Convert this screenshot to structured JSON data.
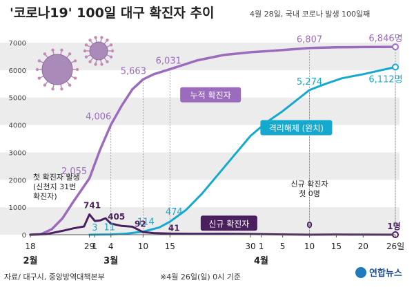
{
  "title": "'코로나19' 100일 대구 확진자 추이",
  "subtitle": "4월 28일, 국내 코로나 발생 100일째",
  "source": "자료/ 대구시, 중앙방역대책본부",
  "note": "※4월 26일(일) 0시 기준",
  "brand": "연합뉴스",
  "colors": {
    "cumulative": "#9b6bbe",
    "cumulative_label": "#9b6bbe",
    "released": "#16a9cf",
    "new": "#4a1f5e",
    "band": "#ececec"
  },
  "chart_data": {
    "type": "line",
    "ylim": [
      0,
      7000
    ],
    "yticks": [
      "0",
      "1000",
      "2000",
      "3000",
      "4000",
      "5000",
      "6000",
      "7000"
    ],
    "xlim": [
      "2020-02-18",
      "2020-04-26"
    ],
    "xticks": [
      {
        "date": "2020-02-18",
        "label": "18"
      },
      {
        "date": "2020-02-29",
        "label": "29"
      },
      {
        "date": "2020-03-01",
        "label": "1"
      },
      {
        "date": "2020-03-04",
        "label": "4"
      },
      {
        "date": "2020-03-10",
        "label": "10"
      },
      {
        "date": "2020-03-15",
        "label": "15"
      },
      {
        "date": "2020-03-30",
        "label": "30"
      },
      {
        "date": "2020-04-01",
        "label": "1"
      },
      {
        "date": "2020-04-05",
        "label": "5"
      },
      {
        "date": "2020-04-10",
        "label": "10"
      },
      {
        "date": "2020-04-15",
        "label": "15"
      },
      {
        "date": "2020-04-20",
        "label": "20"
      },
      {
        "date": "2020-04-26",
        "label": "26일"
      }
    ],
    "months": [
      {
        "date": "2020-02-18",
        "label": "2월"
      },
      {
        "date": "2020-03-04",
        "label": "3월"
      },
      {
        "date": "2020-04-01",
        "label": "4월"
      }
    ],
    "series": [
      {
        "key": "cumulative",
        "name": "누적 확진자",
        "points": [
          [
            "2020-02-18",
            1
          ],
          [
            "2020-02-20",
            20
          ],
          [
            "2020-02-22",
            200
          ],
          [
            "2020-02-24",
            600
          ],
          [
            "2020-02-26",
            1200
          ],
          [
            "2020-02-29",
            2055
          ],
          [
            "2020-03-02",
            3100
          ],
          [
            "2020-03-04",
            4006
          ],
          [
            "2020-03-06",
            4700
          ],
          [
            "2020-03-08",
            5300
          ],
          [
            "2020-03-10",
            5663
          ],
          [
            "2020-03-12",
            5850
          ],
          [
            "2020-03-15",
            6031
          ],
          [
            "2020-03-20",
            6350
          ],
          [
            "2020-03-25",
            6550
          ],
          [
            "2020-03-30",
            6650
          ],
          [
            "2020-04-05",
            6730
          ],
          [
            "2020-04-10",
            6807
          ],
          [
            "2020-04-15",
            6830
          ],
          [
            "2020-04-20",
            6840
          ],
          [
            "2020-04-26",
            6846
          ]
        ]
      },
      {
        "key": "released",
        "name": "격리해제 (완치)",
        "points": [
          [
            "2020-02-29",
            0
          ],
          [
            "2020-03-01",
            3
          ],
          [
            "2020-03-04",
            11
          ],
          [
            "2020-03-07",
            40
          ],
          [
            "2020-03-10",
            114
          ],
          [
            "2020-03-13",
            260
          ],
          [
            "2020-03-15",
            474
          ],
          [
            "2020-03-18",
            900
          ],
          [
            "2020-03-21",
            1500
          ],
          [
            "2020-03-24",
            2200
          ],
          [
            "2020-03-27",
            2900
          ],
          [
            "2020-03-30",
            3600
          ],
          [
            "2020-04-02",
            4100
          ],
          [
            "2020-04-05",
            4500
          ],
          [
            "2020-04-10",
            5274
          ],
          [
            "2020-04-13",
            5500
          ],
          [
            "2020-04-16",
            5700
          ],
          [
            "2020-04-20",
            5850
          ],
          [
            "2020-04-26",
            6112
          ]
        ]
      },
      {
        "key": "new",
        "name": "신규 확진자",
        "points": [
          [
            "2020-02-18",
            1
          ],
          [
            "2020-02-21",
            20
          ],
          [
            "2020-02-24",
            140
          ],
          [
            "2020-02-26",
            230
          ],
          [
            "2020-02-28",
            300
          ],
          [
            "2020-02-29",
            741
          ],
          [
            "2020-03-01",
            500
          ],
          [
            "2020-03-02",
            520
          ],
          [
            "2020-03-03",
            600
          ],
          [
            "2020-03-04",
            405
          ],
          [
            "2020-03-06",
            320
          ],
          [
            "2020-03-08",
            290
          ],
          [
            "2020-03-10",
            92
          ],
          [
            "2020-03-12",
            60
          ],
          [
            "2020-03-15",
            41
          ],
          [
            "2020-03-20",
            30
          ],
          [
            "2020-03-25",
            35
          ],
          [
            "2020-03-30",
            25
          ],
          [
            "2020-04-05",
            10
          ],
          [
            "2020-04-10",
            0
          ],
          [
            "2020-04-15",
            4
          ],
          [
            "2020-04-20",
            3
          ],
          [
            "2020-04-26",
            1
          ]
        ]
      }
    ],
    "data_labels": [
      {
        "series": "cumulative",
        "date": "2020-02-29",
        "value": 2055,
        "text": "2,055"
      },
      {
        "series": "cumulative",
        "date": "2020-03-04",
        "value": 4006,
        "text": "4,006"
      },
      {
        "series": "cumulative",
        "date": "2020-03-10",
        "value": 5663,
        "text": "5,663"
      },
      {
        "series": "cumulative",
        "date": "2020-03-15",
        "value": 6031,
        "text": "6,031"
      },
      {
        "series": "cumulative",
        "date": "2020-04-10",
        "value": 6807,
        "text": "6,807"
      },
      {
        "series": "cumulative",
        "date": "2020-04-26",
        "value": 6846,
        "text": "6,846명"
      },
      {
        "series": "released",
        "date": "2020-03-01",
        "value": 3,
        "text": "3"
      },
      {
        "series": "released",
        "date": "2020-03-04",
        "value": 11,
        "text": "11"
      },
      {
        "series": "released",
        "date": "2020-03-10",
        "value": 114,
        "text": "114"
      },
      {
        "series": "released",
        "date": "2020-03-15",
        "value": 474,
        "text": "474"
      },
      {
        "series": "released",
        "date": "2020-04-10",
        "value": 5274,
        "text": "5,274"
      },
      {
        "series": "released",
        "date": "2020-04-26",
        "value": 6112,
        "text": "6,112명"
      },
      {
        "series": "new",
        "date": "2020-02-29",
        "value": 741,
        "text": "741"
      },
      {
        "series": "new",
        "date": "2020-03-04",
        "value": 405,
        "text": "405"
      },
      {
        "series": "new",
        "date": "2020-03-10",
        "value": 92,
        "text": "92"
      },
      {
        "series": "new",
        "date": "2020-03-15",
        "value": 41,
        "text": "41"
      },
      {
        "series": "new",
        "date": "2020-04-10",
        "value": 0,
        "text": "0"
      },
      {
        "series": "new",
        "date": "2020-04-26",
        "value": 1,
        "text": "1명"
      }
    ],
    "annotations": [
      {
        "date": "2020-02-18",
        "lines": [
          "첫 확진자 발생",
          "(신천지 31번",
          "확진자)"
        ]
      },
      {
        "date": "2020-04-10",
        "lines": [
          "신규 확진자",
          "첫 0명"
        ]
      }
    ]
  }
}
